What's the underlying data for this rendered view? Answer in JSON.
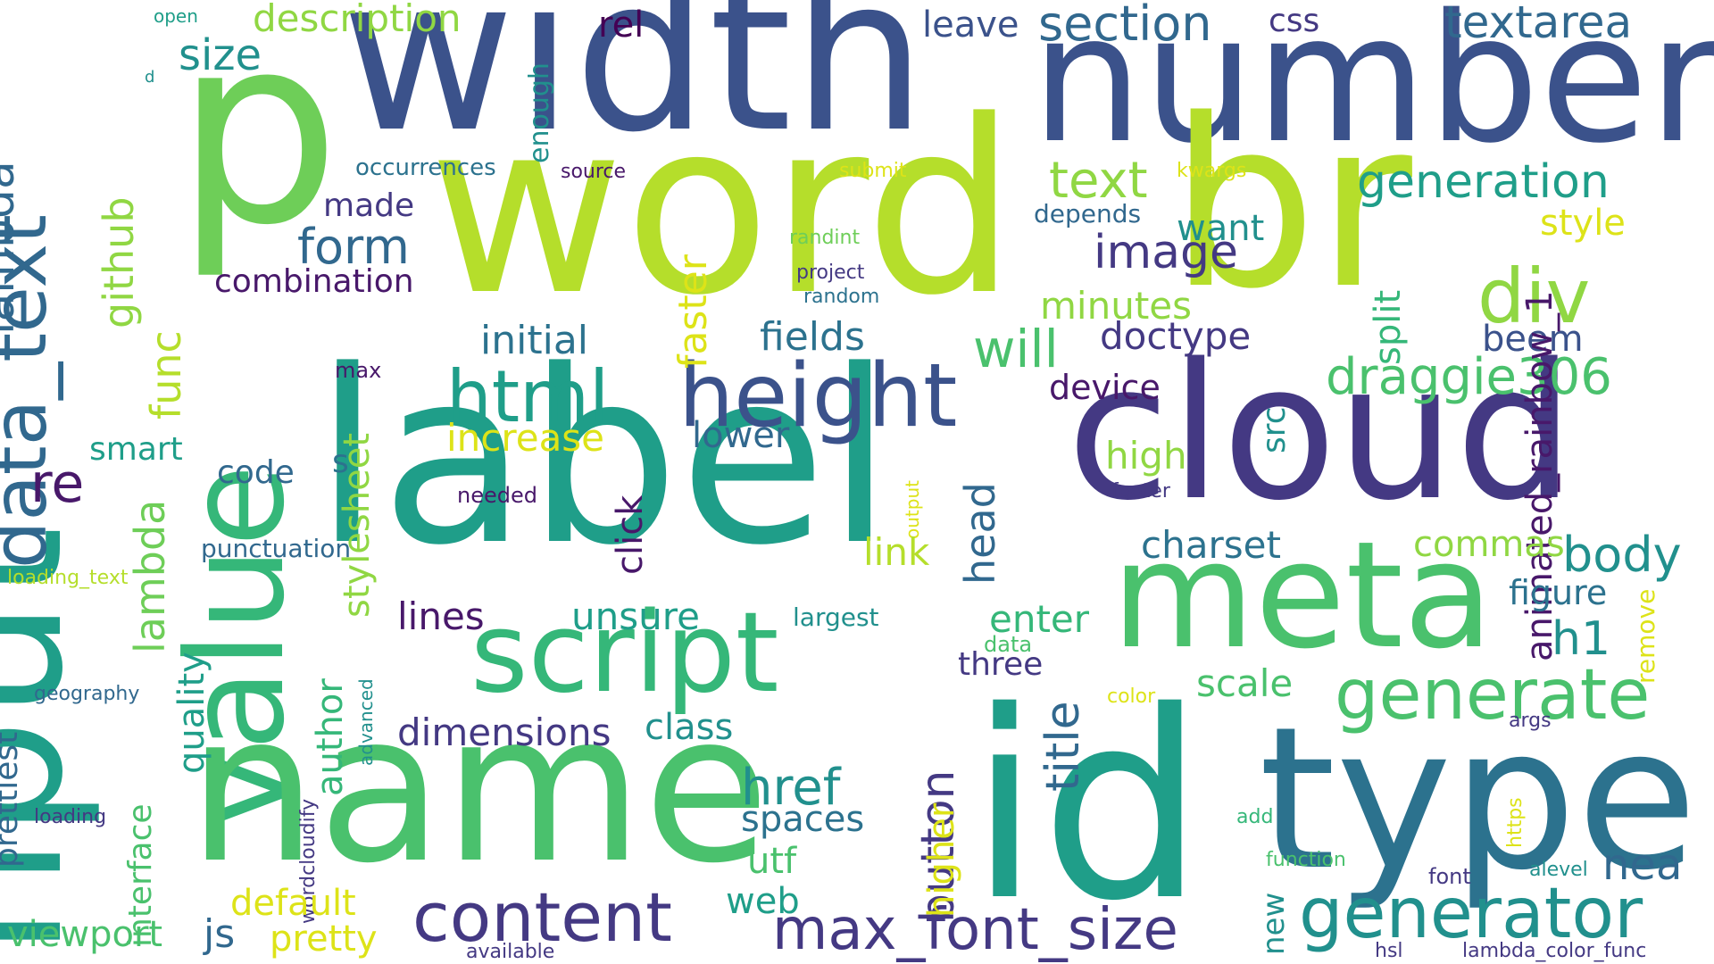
{
  "palette": {
    "navy": "#3b528b",
    "indigo": "#443983",
    "purple": "#48186a",
    "dark_purple": "#440154",
    "blue": "#31688e",
    "steel": "#2c728e",
    "teal": "#21908d",
    "teal2": "#1f9e89",
    "green": "#35b779",
    "green2": "#4ac16d",
    "lime": "#6ece58",
    "lime2": "#90d743",
    "yellow_green": "#b5de2b",
    "yellow": "#dde318"
  },
  "words": [
    {
      "text": "width",
      "color": "navy"
    },
    {
      "text": "number",
      "color": "navy"
    },
    {
      "text": "p",
      "color": "lime"
    },
    {
      "text": "word",
      "color": "yellow_green"
    },
    {
      "text": "br",
      "color": "yellow_green"
    },
    {
      "text": "label",
      "color": "teal2"
    },
    {
      "text": "cloud",
      "color": "indigo"
    },
    {
      "text": "input",
      "color": "teal2"
    },
    {
      "text": "value",
      "color": "green"
    },
    {
      "text": "name",
      "color": "green2"
    },
    {
      "text": "id",
      "color": "teal2"
    },
    {
      "text": "type",
      "color": "steel"
    },
    {
      "text": "meta",
      "color": "green2"
    },
    {
      "text": "script",
      "color": "green"
    },
    {
      "text": "height",
      "color": "navy"
    },
    {
      "text": "html",
      "color": "teal2"
    },
    {
      "text": "data_text",
      "color": "blue"
    },
    {
      "text": "generator",
      "color": "teal"
    },
    {
      "text": "generate",
      "color": "green2"
    },
    {
      "text": "content",
      "color": "indigo"
    },
    {
      "text": "max_font_size",
      "color": "indigo"
    },
    {
      "text": "div",
      "color": "lime2"
    },
    {
      "text": "draggie306",
      "color": "green2"
    },
    {
      "text": "image",
      "color": "indigo"
    },
    {
      "text": "text",
      "color": "lime2"
    },
    {
      "text": "generation",
      "color": "teal2"
    },
    {
      "text": "section",
      "color": "blue"
    },
    {
      "text": "textarea",
      "color": "blue"
    },
    {
      "text": "description",
      "color": "lime2"
    },
    {
      "text": "css",
      "color": "indigo"
    },
    {
      "text": "leave",
      "color": "navy"
    },
    {
      "text": "rel",
      "color": "dark_purple"
    },
    {
      "text": "size",
      "color": "teal"
    },
    {
      "text": "lambda",
      "color": "blue"
    },
    {
      "text": "github",
      "color": "lime2"
    },
    {
      "text": "func",
      "color": "yellow_green"
    },
    {
      "text": "lambda",
      "color": "lime"
    },
    {
      "text": "form",
      "color": "blue"
    },
    {
      "text": "made",
      "color": "indigo"
    },
    {
      "text": "combination",
      "color": "purple"
    },
    {
      "text": "occurrences",
      "color": "steel"
    },
    {
      "text": "source",
      "color": "purple"
    },
    {
      "text": "submit",
      "color": "yellow"
    },
    {
      "text": "kwargs",
      "color": "yellow"
    },
    {
      "text": "depends",
      "color": "blue"
    },
    {
      "text": "randint",
      "color": "lime"
    },
    {
      "text": "project",
      "color": "indigo"
    },
    {
      "text": "random",
      "color": "steel"
    },
    {
      "text": "want",
      "color": "teal"
    },
    {
      "text": "style",
      "color": "yellow"
    },
    {
      "text": "minutes",
      "color": "lime2"
    },
    {
      "text": "will",
      "color": "green2"
    },
    {
      "text": "doctype",
      "color": "indigo"
    },
    {
      "text": "initial",
      "color": "steel"
    },
    {
      "text": "fields",
      "color": "steel"
    },
    {
      "text": "faster",
      "color": "yellow"
    },
    {
      "text": "split",
      "color": "green"
    },
    {
      "text": "beem",
      "color": "navy"
    },
    {
      "text": "animated_rainbow_1",
      "color": "purple"
    },
    {
      "text": "enough",
      "color": "teal"
    },
    {
      "text": "open",
      "color": "teal2"
    },
    {
      "text": "d",
      "color": "teal"
    },
    {
      "text": "max",
      "color": "purple"
    },
    {
      "text": "stylesheet",
      "color": "lime2"
    },
    {
      "text": "increase",
      "color": "yellow"
    },
    {
      "text": "lower",
      "color": "blue"
    },
    {
      "text": "device",
      "color": "purple"
    },
    {
      "text": "high",
      "color": "lime2"
    },
    {
      "text": "footer",
      "color": "indigo"
    },
    {
      "text": "src",
      "color": "teal"
    },
    {
      "text": "smart",
      "color": "teal2"
    },
    {
      "text": "code",
      "color": "blue"
    },
    {
      "text": "s",
      "color": "steel"
    },
    {
      "text": "re",
      "color": "purple"
    },
    {
      "text": "needed",
      "color": "purple"
    },
    {
      "text": "output",
      "color": "yellow"
    },
    {
      "text": "click",
      "color": "purple"
    },
    {
      "text": "head",
      "color": "blue"
    },
    {
      "text": "charset",
      "color": "steel"
    },
    {
      "text": "link",
      "color": "yellow_green"
    },
    {
      "text": "commas",
      "color": "lime2"
    },
    {
      "text": "body",
      "color": "teal"
    },
    {
      "text": "punctuation",
      "color": "blue"
    },
    {
      "text": "loading_text",
      "color": "yellow_green"
    },
    {
      "text": "unsure",
      "color": "teal2"
    },
    {
      "text": "lines",
      "color": "purple"
    },
    {
      "text": "largest",
      "color": "teal"
    },
    {
      "text": "enter",
      "color": "green"
    },
    {
      "text": "remove",
      "color": "yellow"
    },
    {
      "text": "figure",
      "color": "steel"
    },
    {
      "text": "h1",
      "color": "teal"
    },
    {
      "text": "quality",
      "color": "teal2"
    },
    {
      "text": "author",
      "color": "green"
    },
    {
      "text": "advanced",
      "color": "teal"
    },
    {
      "text": "data",
      "color": "green2"
    },
    {
      "text": "three",
      "color": "indigo"
    },
    {
      "text": "title",
      "color": "blue"
    },
    {
      "text": "scale",
      "color": "green2"
    },
    {
      "text": "prettiest",
      "color": "blue"
    },
    {
      "text": "geography",
      "color": "blue"
    },
    {
      "text": "interface",
      "color": "green2"
    },
    {
      "text": "wordcloudify",
      "color": "indigo"
    },
    {
      "text": "dimensions",
      "color": "indigo"
    },
    {
      "text": "class",
      "color": "teal"
    },
    {
      "text": "color",
      "color": "yellow"
    },
    {
      "text": "args",
      "color": "indigo"
    },
    {
      "text": "button",
      "color": "indigo"
    },
    {
      "text": "higher",
      "color": "yellow"
    },
    {
      "text": "href",
      "color": "teal"
    },
    {
      "text": "spaces",
      "color": "steel"
    },
    {
      "text": "loading",
      "color": "indigo"
    },
    {
      "text": "https",
      "color": "yellow"
    },
    {
      "text": "add",
      "color": "green"
    },
    {
      "text": "utf",
      "color": "green2"
    },
    {
      "text": "function",
      "color": "green2"
    },
    {
      "text": "new",
      "color": "teal"
    },
    {
      "text": "nea",
      "color": "blue"
    },
    {
      "text": "font",
      "color": "indigo"
    },
    {
      "text": "alevel",
      "color": "teal"
    },
    {
      "text": "default",
      "color": "yellow"
    },
    {
      "text": "web",
      "color": "teal2"
    },
    {
      "text": "js",
      "color": "blue"
    },
    {
      "text": "viewport",
      "color": "green2"
    },
    {
      "text": "pretty",
      "color": "yellow"
    },
    {
      "text": "available",
      "color": "indigo"
    },
    {
      "text": "hsl",
      "color": "indigo"
    },
    {
      "text": "lambda_color_func",
      "color": "indigo"
    }
  ]
}
